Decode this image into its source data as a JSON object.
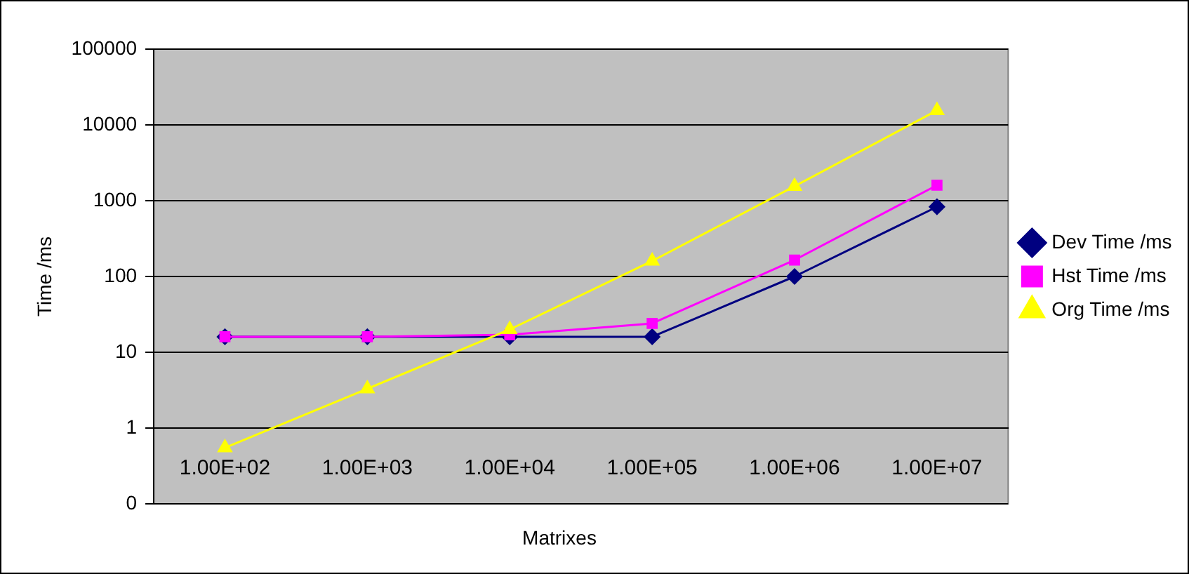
{
  "chart_data": {
    "type": "line",
    "xlabel": "Matrixes",
    "ylabel": "Time /ms",
    "categories": [
      "1.00E+02",
      "1.00E+03",
      "1.00E+04",
      "1.00E+05",
      "1.00E+06",
      "1.00E+07"
    ],
    "series": [
      {
        "name": "Dev Time /ms",
        "color": "#000080",
        "marker": "diamond",
        "values": [
          16,
          16,
          16,
          16,
          100,
          830
        ]
      },
      {
        "name": "Hst Time /ms",
        "color": "#ff00ff",
        "marker": "square",
        "values": [
          16,
          16,
          17,
          24,
          165,
          1600
        ]
      },
      {
        "name": "Org Time /ms",
        "color": "#ffff00",
        "marker": "triangle",
        "values": [
          0.55,
          3.3,
          20,
          160,
          1550,
          15500
        ]
      }
    ],
    "log": "y",
    "ylim": [
      0.1,
      100000
    ],
    "yticks": [
      {
        "value": 0.1,
        "label": "0"
      },
      1,
      10,
      100,
      1000,
      10000,
      100000
    ],
    "grid": "y",
    "legend": "right",
    "line_style": "solid"
  }
}
